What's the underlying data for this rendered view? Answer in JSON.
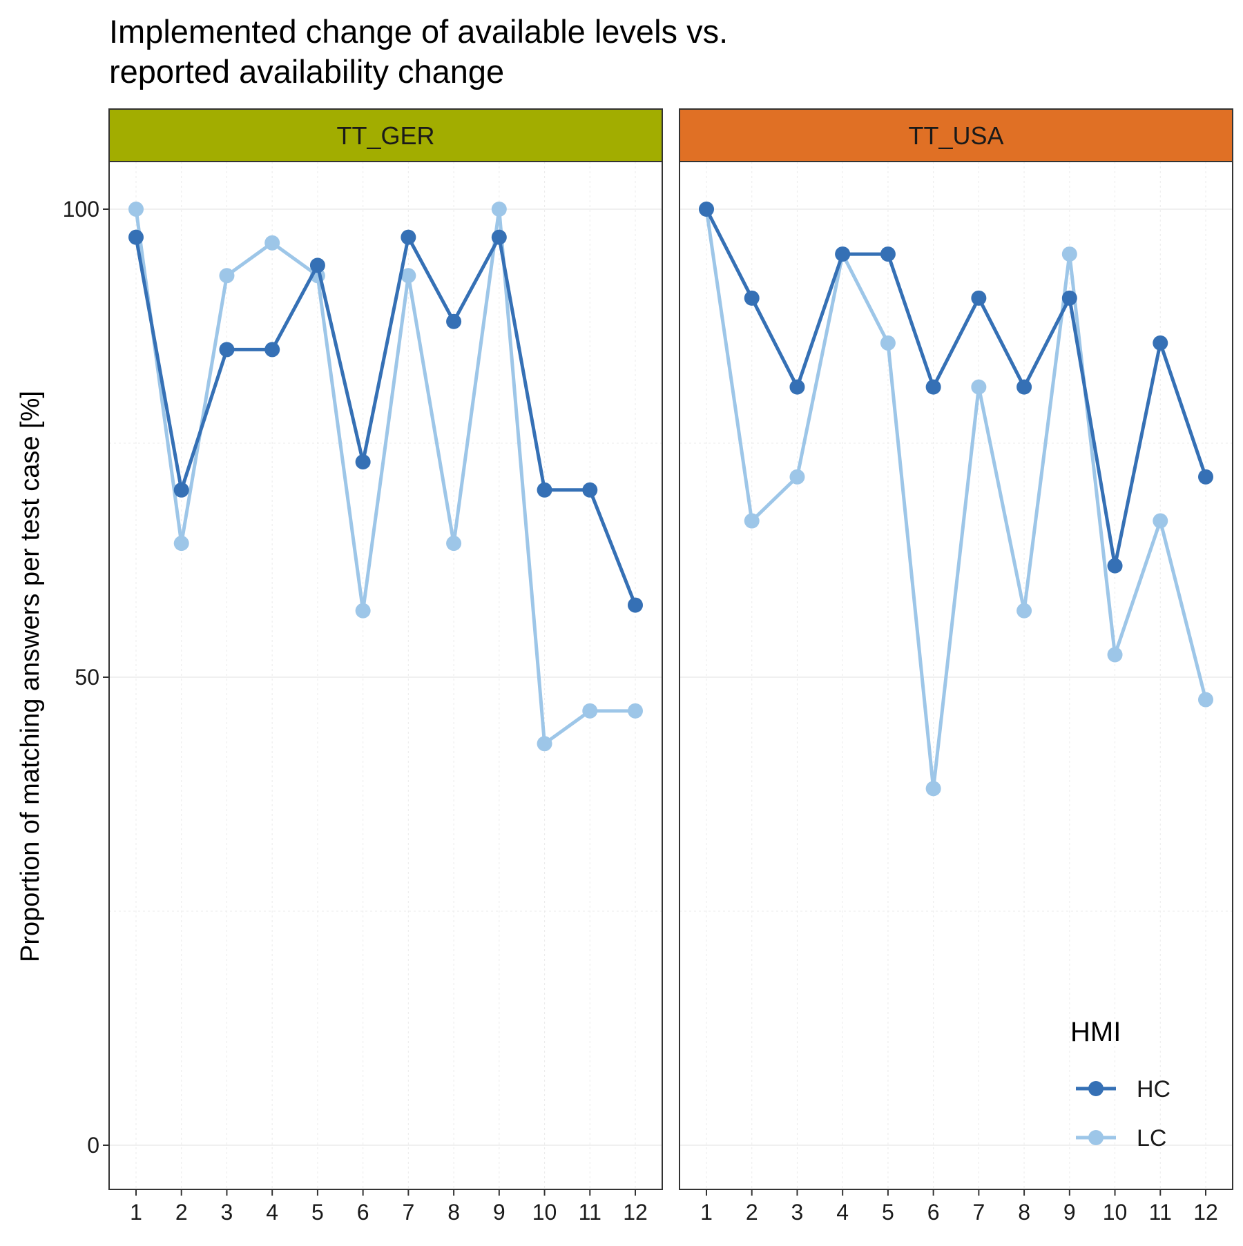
{
  "chart_data": {
    "type": "line",
    "title_lines": [
      "Implemented change of available levels vs.",
      "reported availability change"
    ],
    "ylabel": "Proportion of matching answers per test case [%]",
    "xlabel": "",
    "x": [
      1,
      2,
      3,
      4,
      5,
      6,
      7,
      8,
      9,
      10,
      11,
      12
    ],
    "x_tick_labels": [
      "1",
      "2",
      "3",
      "4",
      "5",
      "6",
      "7",
      "8",
      "9",
      "10",
      "11",
      "12"
    ],
    "ylim": [
      -2,
      108
    ],
    "y_ticks": [
      0,
      50,
      100
    ],
    "y_tick_labels": [
      "0",
      "50",
      "100"
    ],
    "grid": true,
    "legend": {
      "title": "HMI",
      "placement": "bottom-right",
      "entries": [
        {
          "label": "HC",
          "color": "#3570b5"
        },
        {
          "label": "LC",
          "color": "#9dc6e8"
        }
      ]
    },
    "panels": [
      {
        "strip_label": "TT_GER",
        "strip_color": "#a2ad00",
        "series": [
          {
            "name": "HC",
            "color": "#3570b5",
            "values": [
              97,
              70,
              85,
              85,
              94,
              73,
              97,
              88,
              97,
              70,
              70,
              57.7
            ]
          },
          {
            "name": "LC",
            "color": "#9dc6e8",
            "values": [
              100,
              64.3,
              92.9,
              96.4,
              92.9,
              57.1,
              92.9,
              64.3,
              100,
              42.9,
              46.4,
              46.4
            ]
          }
        ]
      },
      {
        "strip_label": "TT_USA",
        "strip_color": "#e07025",
        "series": [
          {
            "name": "HC",
            "color": "#3570b5",
            "values": [
              100,
              90.5,
              81,
              95.2,
              95.2,
              81,
              90.5,
              81,
              90.5,
              61.9,
              85.7,
              71.4
            ]
          },
          {
            "name": "LC",
            "color": "#9dc6e8",
            "values": [
              100,
              66.7,
              71.4,
              95.2,
              85.7,
              38.1,
              81,
              57.1,
              95.2,
              52.4,
              66.7,
              47.6
            ]
          }
        ]
      }
    ]
  }
}
